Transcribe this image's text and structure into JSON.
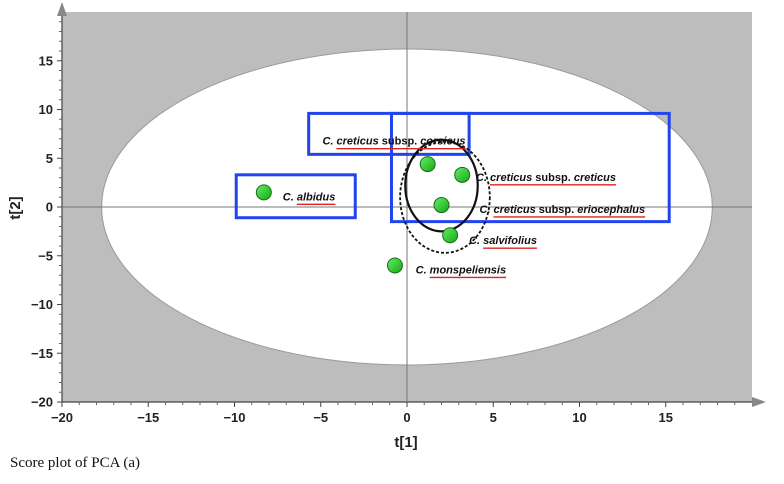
{
  "chart_data": {
    "type": "scatter",
    "xlabel": "t[1]",
    "ylabel": "t[2]",
    "xlim": [
      -20,
      20
    ],
    "ylim": [
      -20,
      20
    ],
    "xticks": [
      -20,
      -15,
      -10,
      -5,
      0,
      5,
      10,
      15
    ],
    "yticks": [
      -20,
      -15,
      -10,
      -5,
      0,
      5,
      10,
      15
    ],
    "grid": false,
    "hotelling_ellipse": {
      "x_radius": 17.7,
      "y_radius": 16.2
    },
    "colors": {
      "background": "#bdbdbd",
      "ellipse_fill": "#ffffff",
      "point": "#22cc22",
      "box": "#2244ee",
      "underline": "#dd2222"
    },
    "points": [
      {
        "label": "C. albidus",
        "x": -8.3,
        "y": 1.5
      },
      {
        "label": "C. creticus subsp. corsicus",
        "x": 1.2,
        "y": 4.4
      },
      {
        "label": "C. creticus subsp. creticus",
        "x": 3.2,
        "y": 3.3
      },
      {
        "label": "C. creticus subsp. eriocephalus",
        "x": 2.0,
        "y": 0.2
      },
      {
        "label": "C. salvifolius",
        "x": 2.5,
        "y": -2.9
      },
      {
        "label": "C. monspeliensis",
        "x": -0.7,
        "y": -6.0
      }
    ],
    "annotations": [
      {
        "text": "C. albidus",
        "x": -7.2,
        "y": 1.1
      },
      {
        "text": "C. creticus subsp. corsicus",
        "x": -4.9,
        "y": 6.8
      },
      {
        "text": "C. creticus subsp. creticus",
        "x": 4.0,
        "y": 3.1
      },
      {
        "text": "C. creticus subsp. eriocephalus",
        "x": 4.2,
        "y": -0.2
      },
      {
        "text": "C. salvifolius",
        "x": 3.6,
        "y": -3.4
      },
      {
        "text": "C. monspeliensis",
        "x": 0.5,
        "y": -6.4
      }
    ],
    "groups": [
      {
        "x0": -9.9,
        "y0": -1.1,
        "x1": -3.0,
        "y1": 3.3
      },
      {
        "x0": -5.7,
        "y0": 5.4,
        "x1": 3.6,
        "y1": 9.6
      },
      {
        "x0": -0.9,
        "y0": -1.5,
        "x1": 15.2,
        "y1": 9.6
      }
    ],
    "clusters": [
      {
        "cx": 2.0,
        "cy": 2.2,
        "rx": 2.1,
        "ry": 4.7
      },
      {
        "cx": 2.2,
        "cy": 1.0,
        "rx": 2.6,
        "ry": 5.7
      }
    ]
  },
  "caption": "Score plot of PCA  (a)"
}
